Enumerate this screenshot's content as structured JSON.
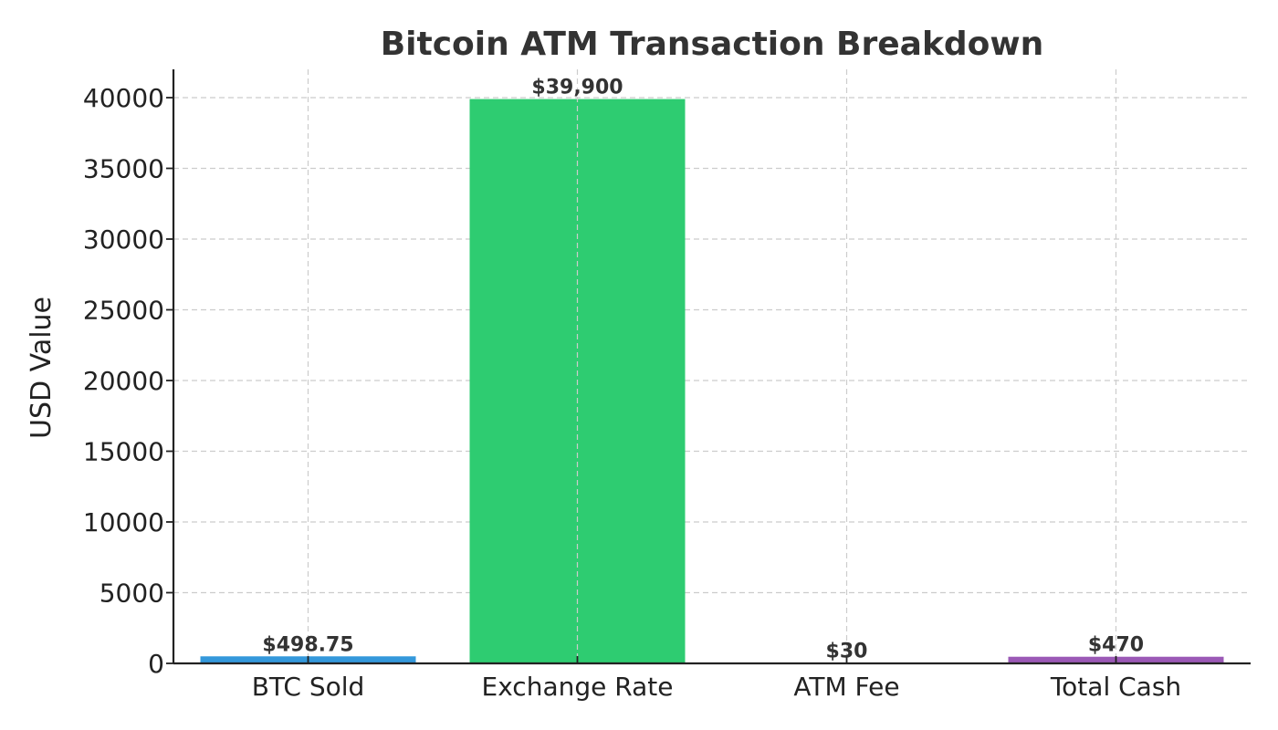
{
  "chart_data": {
    "type": "bar",
    "title": "Bitcoin ATM Transaction Breakdown",
    "xlabel": "",
    "ylabel": "USD Value",
    "categories": [
      "BTC Sold",
      "Exchange Rate",
      "ATM Fee",
      "Total Cash"
    ],
    "values": [
      498.75,
      39900,
      30,
      470
    ],
    "value_labels": [
      "$498.75",
      "$39,900",
      "$30",
      "$470"
    ],
    "colors": [
      "#3498db",
      "#2ecc71",
      "#e74c3c",
      "#9b59b6"
    ],
    "ylim": [
      0,
      42000
    ],
    "yticks": [
      0,
      5000,
      10000,
      15000,
      20000,
      25000,
      30000,
      35000,
      40000
    ],
    "grid": true,
    "legend": "none"
  }
}
